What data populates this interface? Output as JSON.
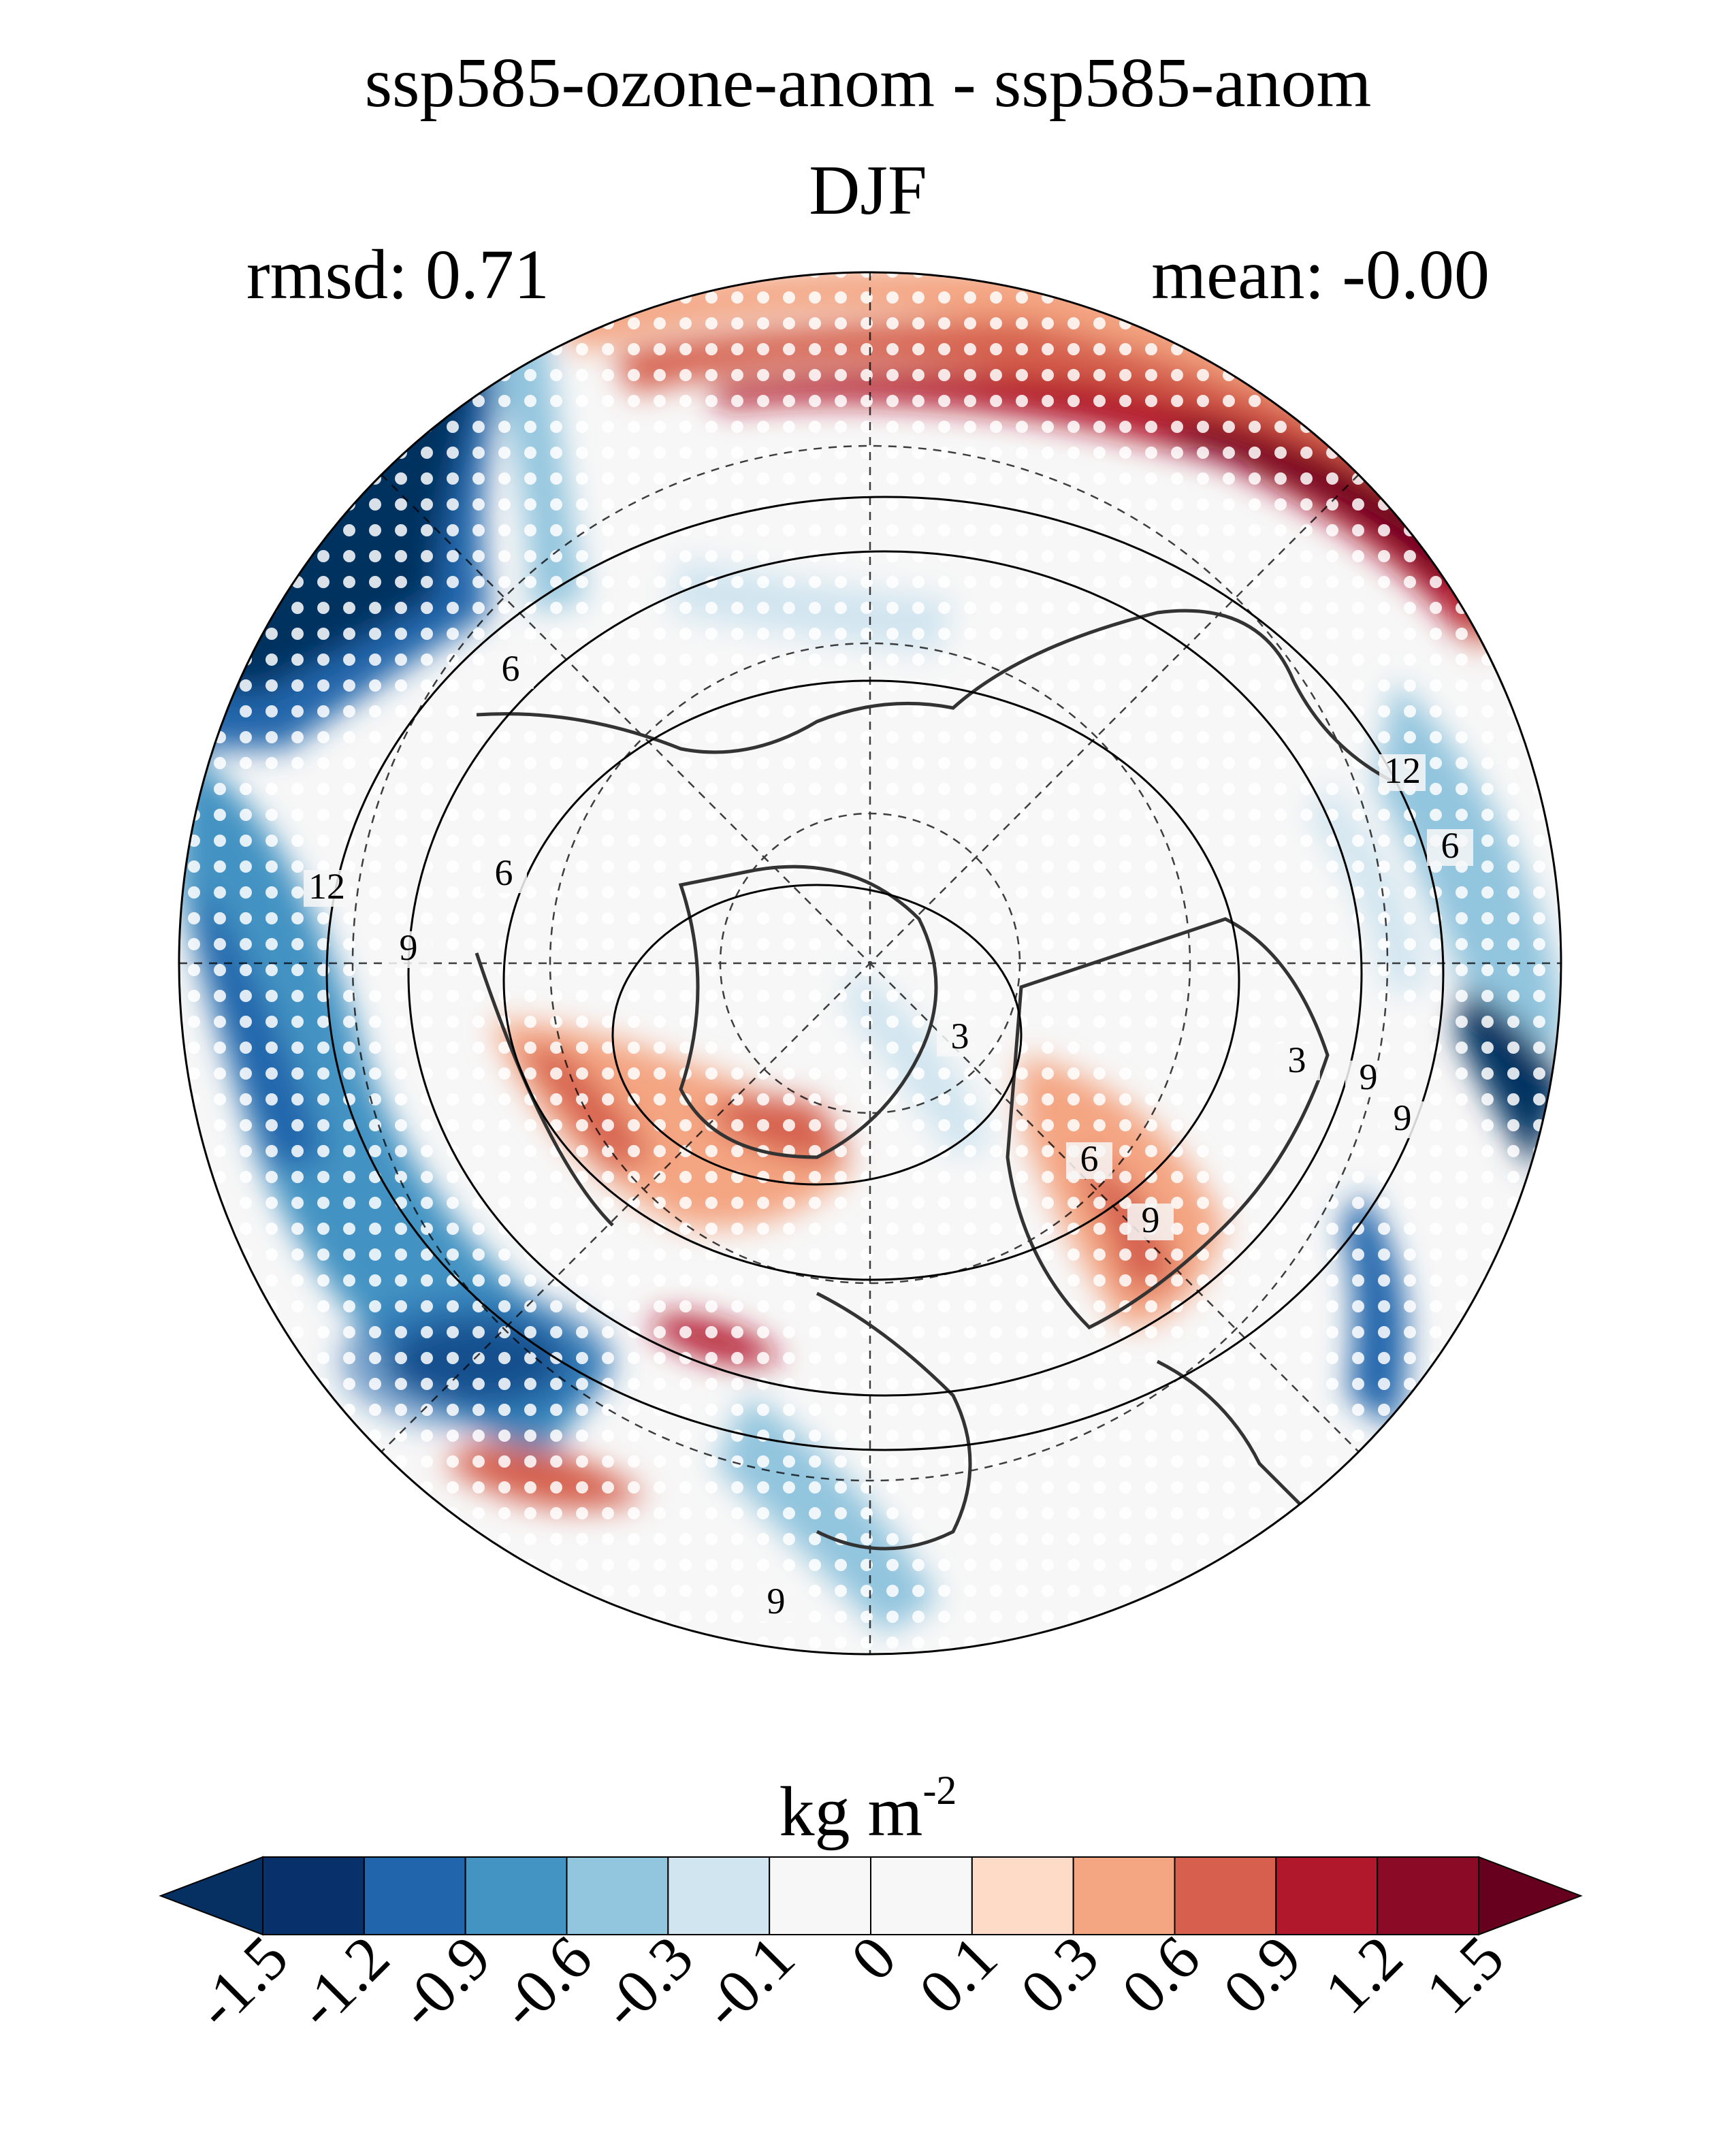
{
  "figure": {
    "title": "ssp585-ozone-anom - ssp585-anom",
    "season": "DJF",
    "rmsd_label": "rmsd: 0.71",
    "mean_label": "mean: -0.00"
  },
  "map": {
    "projection": "north-polar-stereographic",
    "contour_labels": [
      "12",
      "6",
      "9",
      "3",
      "6",
      "9",
      "12",
      "6",
      "9",
      "3",
      "9",
      "6",
      "9"
    ],
    "significance_stippling": true
  },
  "colorbar": {
    "units_base": "kg m",
    "units_exp": "-2",
    "ticks": [
      "-1.5",
      "-1.2",
      "-0.9",
      "-0.6",
      "-0.3",
      "-0.1",
      "0",
      "0.1",
      "0.3",
      "0.6",
      "0.9",
      "1.2",
      "1.5"
    ],
    "colors": [
      "#053061",
      "#08306b",
      "#2166ac",
      "#4393c3",
      "#92c5de",
      "#d1e5f0",
      "#f7f7f7",
      "#f7f7f7",
      "#fddbc7",
      "#f4a582",
      "#d6604d",
      "#b2182b",
      "#8b0a26",
      "#67001f"
    ]
  }
}
